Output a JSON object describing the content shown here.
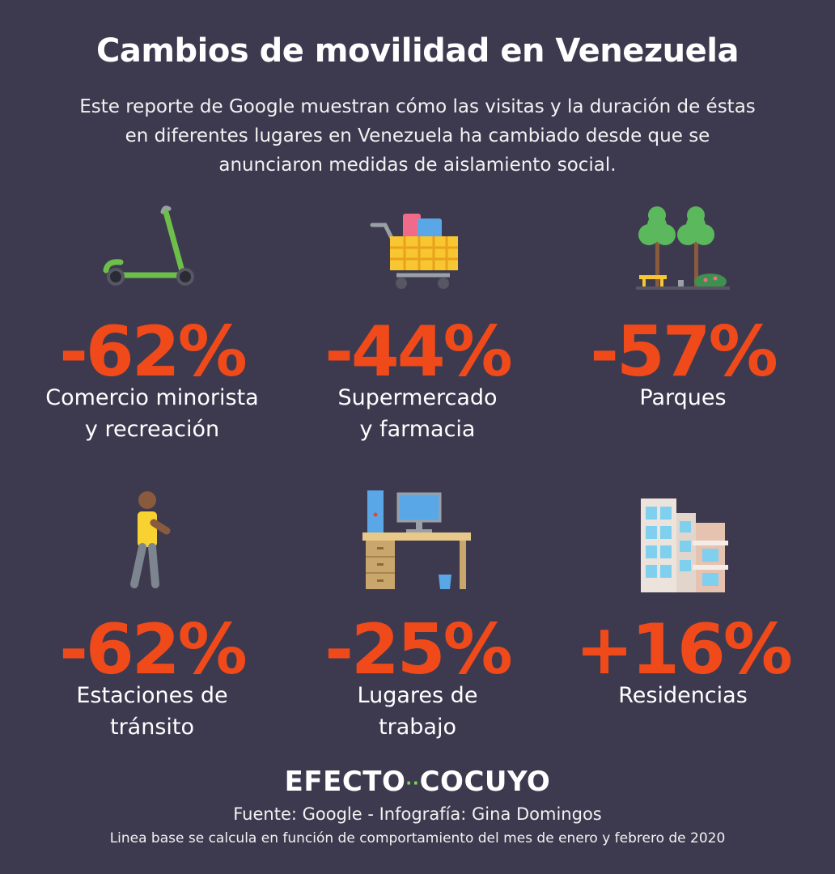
{
  "header": {
    "title": "Cambios de movilidad en Venezuela",
    "subtitle": "Este reporte de Google muestran cómo las visitas y la duración de éstas en diferentes lugares en Venezuela ha cambiado desde que se anunciaron medidas de aislamiento social."
  },
  "stats": [
    {
      "icon": "scooter-icon",
      "value": "-62%",
      "label_line1": "Comercio minorista",
      "label_line2": "y recreación"
    },
    {
      "icon": "shopping-cart-icon",
      "value": "-44%",
      "label_line1": "Supermercado",
      "label_line2": "y farmacia"
    },
    {
      "icon": "park-trees-icon",
      "value": "-57%",
      "label_line1": "Parques",
      "label_line2": ""
    },
    {
      "icon": "walking-person-icon",
      "value": "-62%",
      "label_line1": "Estaciones de",
      "label_line2": "tránsito"
    },
    {
      "icon": "office-desk-icon",
      "value": "-25%",
      "label_line1": "Lugares de",
      "label_line2": "trabajo"
    },
    {
      "icon": "residential-building-icon",
      "value": "+16%",
      "label_line1": "Residencias",
      "label_line2": ""
    }
  ],
  "footer": {
    "brand_left": "EFECTO",
    "brand_right": "COCUYO",
    "source": "Fuente: Google - Infografía: Gina Domingos",
    "note": "Linea base se calcula en función de comportamiento del mes de enero y febrero de 2020"
  },
  "colors": {
    "background": "#3d3a4f",
    "accent": "#f04a1a",
    "brand_dots": "#7ed957"
  }
}
